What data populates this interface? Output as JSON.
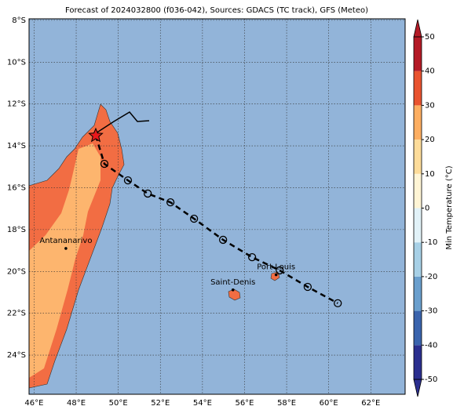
{
  "chart_data": {
    "type": "map",
    "title": "Forecast of 2024032800 (f036-042), Sources: GDACS (TC track), GFS (Meteo)",
    "xlim": [
      45.76,
      63.63
    ],
    "ylim": [
      -25.87,
      -7.93
    ],
    "xticks": [
      {
        "value": 46,
        "label": "46°E"
      },
      {
        "value": 48,
        "label": "48°E"
      },
      {
        "value": 50,
        "label": "50°E"
      },
      {
        "value": 52,
        "label": "52°E"
      },
      {
        "value": 54,
        "label": "54°E"
      },
      {
        "value": 56,
        "label": "56°E"
      },
      {
        "value": 58,
        "label": "58°E"
      },
      {
        "value": 60,
        "label": "60°E"
      },
      {
        "value": 62,
        "label": "62°E"
      }
    ],
    "yticks": [
      {
        "value": -8,
        "label": "8°S"
      },
      {
        "value": -10,
        "label": "10°S"
      },
      {
        "value": -12,
        "label": "12°S"
      },
      {
        "value": -14,
        "label": "14°S"
      },
      {
        "value": -16,
        "label": "16°S"
      },
      {
        "value": -18,
        "label": "18°S"
      },
      {
        "value": -20,
        "label": "20°S"
      },
      {
        "value": -22,
        "label": "22°S"
      },
      {
        "value": -24,
        "label": "24°S"
      }
    ],
    "grid": true,
    "track": {
      "lon": [
        48.93,
        49.34,
        50.46,
        51.4,
        52.48,
        53.6,
        54.98,
        56.36,
        57.67,
        59.0,
        60.43
      ],
      "lat": [
        -13.51,
        -14.86,
        -15.65,
        -16.28,
        -16.7,
        -17.48,
        -18.49,
        -19.32,
        -19.95,
        -20.74,
        -21.52
      ]
    },
    "cities": [
      {
        "name": "Antananarivo",
        "lon": 47.51,
        "lat": -18.9
      },
      {
        "name": "Saint-Denis",
        "lon": 55.45,
        "lat": -20.88
      },
      {
        "name": "Port Louis",
        "lon": 57.5,
        "lat": -20.16
      }
    ],
    "colorbar": {
      "label": "Min Temperature (°C)",
      "lim": [
        -50,
        50
      ],
      "ticks": [
        -50,
        -40,
        -30,
        -20,
        -10,
        0,
        10,
        20,
        30,
        40,
        50
      ],
      "colors": [
        "#2b2f8f",
        "#3a64ad",
        "#6a9fcd",
        "#a7d0e6",
        "#e2f2f8",
        "#fff5d5",
        "#fddc9a",
        "#fdae61",
        "#e9532f",
        "#b41a26"
      ]
    }
  }
}
